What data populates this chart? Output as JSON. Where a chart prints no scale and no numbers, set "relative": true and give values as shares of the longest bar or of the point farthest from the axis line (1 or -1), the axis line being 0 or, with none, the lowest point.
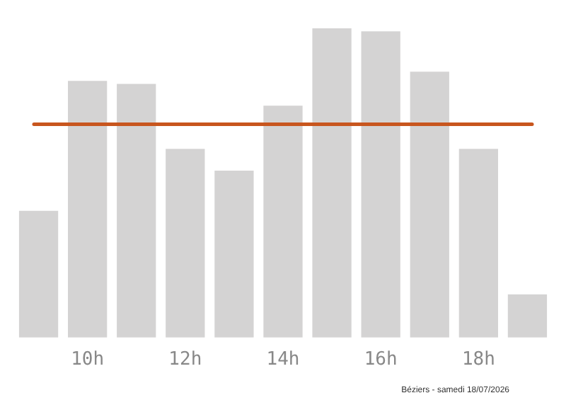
{
  "chart_data": {
    "type": "bar",
    "relative": true,
    "categories": [
      null,
      "10h",
      null,
      "12h",
      null,
      "14h",
      null,
      "16h",
      null,
      "18h",
      null
    ],
    "values": [
      0.41,
      0.83,
      0.82,
      0.61,
      0.54,
      0.75,
      1,
      0.99,
      0.86,
      0.61,
      0.14
    ],
    "color": "#d4d3d3",
    "ref_lines": [
      {
        "axis": "y",
        "value": 0.69,
        "color": "#c8561e"
      }
    ],
    "annotations": [
      "Béziers - samedi 18/07/2026"
    ],
    "grid": false,
    "legend": false
  }
}
